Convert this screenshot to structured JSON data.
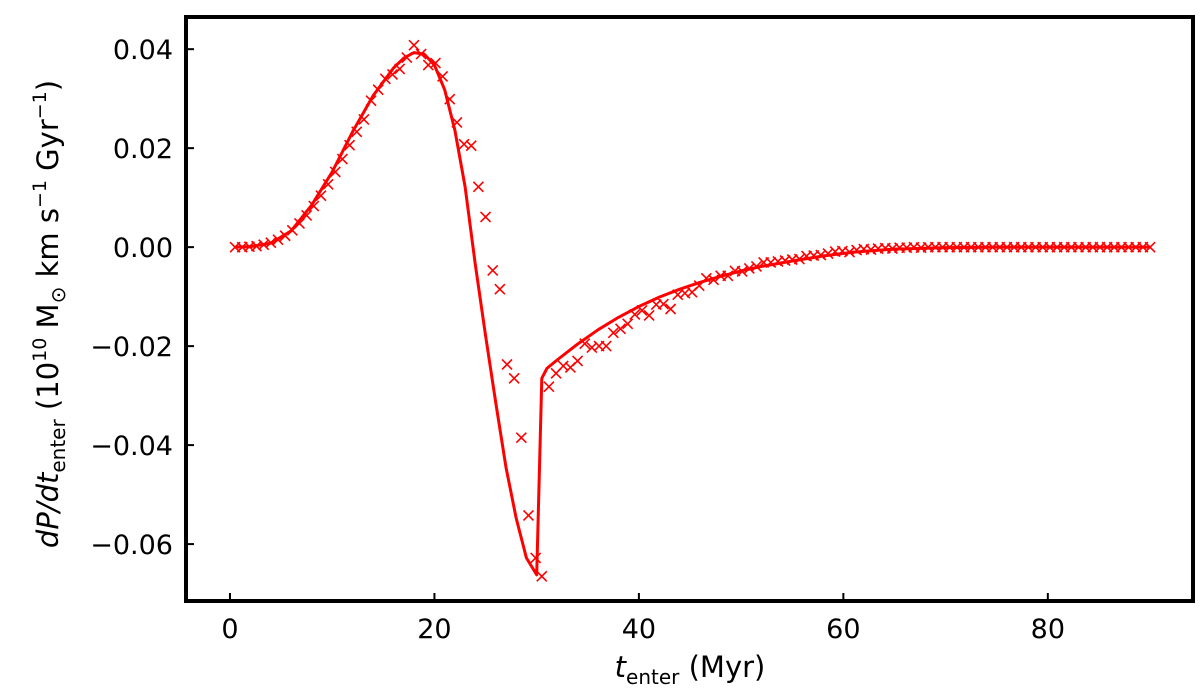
{
  "chart_data": {
    "type": "line",
    "title": "",
    "xlabel": {
      "main": "t",
      "main_style": "italic",
      "subscript": "enter",
      "unit": " (Myr)"
    },
    "ylabel": {
      "part1": "dP/dt",
      "part1_style": "italic",
      "subscript": "enter",
      "part2": " (10",
      "sup1": "10",
      "part3": " M",
      "msun": "⊙",
      "part4": " km s",
      "sup2": "−1",
      "part5": " Gyr",
      "sup3": "−1",
      "part6": ")"
    },
    "xlim": [
      -4.3,
      94.2
    ],
    "ylim": [
      -0.0715,
      0.0465
    ],
    "x_ticks": [
      0,
      20,
      40,
      60,
      80
    ],
    "x_tick_labels": [
      "0",
      "20",
      "40",
      "60",
      "80"
    ],
    "y_ticks": [
      0.04,
      0.02,
      0.0,
      -0.02,
      -0.04,
      -0.06
    ],
    "y_tick_labels": [
      "0.04",
      "0.02",
      "0.00",
      "−0.02",
      "−0.04",
      "−0.06"
    ],
    "grid": false,
    "series": [
      {
        "kind": "line",
        "color": "#ff0000",
        "x": [
          0.5,
          2,
          4,
          6,
          8,
          10,
          12,
          14,
          16,
          17,
          18,
          19,
          20,
          21,
          22,
          23,
          24,
          25,
          26,
          27,
          28,
          29,
          30,
          30.5,
          31,
          32,
          34,
          36,
          38,
          40,
          42,
          44,
          46,
          48,
          50,
          52,
          55,
          58,
          61,
          65,
          70,
          75,
          80,
          85,
          90
        ],
        "y": [
          0.0,
          0.0001,
          0.0008,
          0.0033,
          0.0085,
          0.0152,
          0.0233,
          0.0306,
          0.0362,
          0.0382,
          0.0393,
          0.039,
          0.0368,
          0.0318,
          0.0236,
          0.0122,
          -0.0035,
          -0.0178,
          -0.0315,
          -0.0445,
          -0.0548,
          -0.0628,
          -0.0662,
          -0.0265,
          -0.0245,
          -0.0228,
          -0.0196,
          -0.0167,
          -0.0142,
          -0.012,
          -0.0101,
          -0.0085,
          -0.0071,
          -0.0059,
          -0.0048,
          -0.0039,
          -0.0028,
          -0.0018,
          -0.001,
          -0.0004,
          -0.0001,
          0.0,
          0.0,
          0.0,
          0.0
        ]
      },
      {
        "kind": "markers",
        "marker": "x",
        "color": "#ff0000",
        "x": [
          0.5,
          1.2,
          1.9,
          2.6,
          3.3,
          4.0,
          4.7,
          5.4,
          6.1,
          6.8,
          7.5,
          8.2,
          8.9,
          9.6,
          10.3,
          11.0,
          11.7,
          12.4,
          13.1,
          13.8,
          14.5,
          15.2,
          15.9,
          16.6,
          17.3,
          18.0,
          18.7,
          19.4,
          20.1,
          20.8,
          21.5,
          22.2,
          22.9,
          23.6,
          24.3,
          25.0,
          25.7,
          26.4,
          27.1,
          27.8,
          28.5,
          29.2,
          29.9,
          30.5,
          31.2,
          31.9,
          32.6,
          33.3,
          34.0,
          34.7,
          35.4,
          36.1,
          36.8,
          37.5,
          38.2,
          38.9,
          39.6,
          40.3,
          41.0,
          41.7,
          42.4,
          43.1,
          43.8,
          44.5,
          45.2,
          45.9,
          46.6,
          47.3,
          48.0,
          48.7,
          49.4,
          50.1,
          50.8,
          51.5,
          52.2,
          52.9,
          53.6,
          54.3,
          55.0,
          55.7,
          56.4,
          57.1,
          57.8,
          58.5,
          59.2,
          59.9,
          60.6,
          61.3,
          62.0,
          62.7,
          63.4,
          64.1,
          64.8,
          65.5,
          66.2,
          66.9,
          67.6,
          68.3,
          69.0,
          69.7,
          70.4,
          71.1,
          71.8,
          72.5,
          73.2,
          73.9,
          74.6,
          75.3,
          76.0,
          76.7,
          77.4,
          78.1,
          78.8,
          79.5,
          80.2,
          80.9,
          81.6,
          82.3,
          83.0,
          83.7,
          84.4,
          85.1,
          85.8,
          86.5,
          87.2,
          87.9,
          88.6,
          89.3,
          90.0
        ],
        "y": [
          0.0,
          0.0,
          0.0001,
          0.0002,
          0.0005,
          0.0009,
          0.0015,
          0.0023,
          0.0034,
          0.0048,
          0.0064,
          0.0083,
          0.0104,
          0.0127,
          0.0152,
          0.0178,
          0.0206,
          0.0233,
          0.0258,
          0.0296,
          0.0318,
          0.034,
          0.0349,
          0.036,
          0.0383,
          0.0408,
          0.039,
          0.0368,
          0.0372,
          0.0345,
          0.0299,
          0.0252,
          0.0208,
          0.0205,
          0.0122,
          0.0061,
          -0.0047,
          -0.0085,
          -0.0237,
          -0.0265,
          -0.0385,
          -0.0542,
          -0.0628,
          -0.0665,
          -0.0282,
          -0.0255,
          -0.024,
          -0.0243,
          -0.023,
          -0.0195,
          -0.0203,
          -0.02,
          -0.02,
          -0.0173,
          -0.0165,
          -0.0155,
          -0.0136,
          -0.0128,
          -0.0138,
          -0.0116,
          -0.0115,
          -0.0125,
          -0.0096,
          -0.0093,
          -0.0091,
          -0.0078,
          -0.0063,
          -0.0066,
          -0.0058,
          -0.0058,
          -0.0048,
          -0.0049,
          -0.0043,
          -0.0039,
          -0.0031,
          -0.0031,
          -0.0029,
          -0.0027,
          -0.0025,
          -0.0024,
          -0.0018,
          -0.0017,
          -0.0016,
          -0.0013,
          -0.0009,
          -0.0008,
          -0.001,
          -0.0006,
          -0.0004,
          -0.0005,
          -0.0003,
          -0.0002,
          -0.0003,
          -0.0001,
          -0.0001,
          0.0,
          -0.0001,
          0.0,
          0.0,
          0.0,
          0.0,
          0.0,
          0.0,
          0.0,
          0.0,
          0.0,
          0.0,
          0.0,
          0.0,
          0.0,
          0.0,
          0.0,
          0.0,
          0.0,
          0.0,
          0.0,
          0.0,
          0.0,
          0.0,
          0.0,
          0.0,
          0.0,
          0.0,
          0.0,
          0.0,
          0.0,
          0.0,
          0.0,
          0.0
        ]
      }
    ]
  }
}
